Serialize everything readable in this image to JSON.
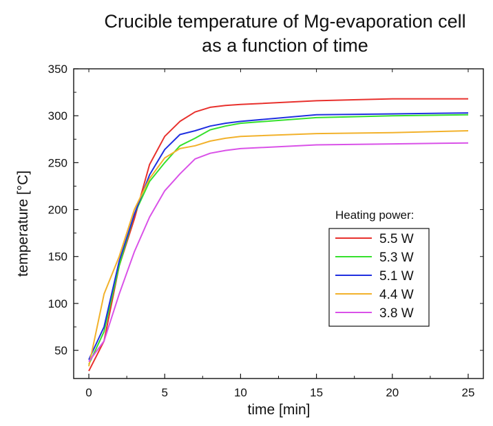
{
  "chart_data": {
    "type": "line",
    "title_lines": [
      "Crucible temperature of Mg-evaporation cell",
      "as a function of time"
    ],
    "xlabel": "time [min]",
    "ylabel": "temperature [°C]",
    "xlim": [
      -1,
      26
    ],
    "ylim": [
      20,
      350
    ],
    "xticks": [
      0,
      5,
      10,
      15,
      20,
      25
    ],
    "yticks": [
      50,
      100,
      150,
      200,
      250,
      300,
      350
    ],
    "grid": false,
    "legend": {
      "title": "Heating power:",
      "placement": "center-right"
    },
    "series": [
      {
        "name": "5.5 W",
        "color": "#e8302c",
        "x": [
          0,
          1,
          2,
          3,
          4,
          5,
          6,
          7,
          8,
          9,
          10,
          15,
          20,
          25
        ],
        "y": [
          28,
          60,
          140,
          190,
          248,
          278,
          294,
          304,
          309,
          311,
          312,
          316,
          318,
          318
        ]
      },
      {
        "name": "5.3 W",
        "color": "#35e02c",
        "x": [
          0,
          1,
          2,
          3,
          4,
          5,
          6,
          7,
          8,
          9,
          10,
          15,
          20,
          25
        ],
        "y": [
          35,
          70,
          140,
          195,
          230,
          250,
          268,
          276,
          285,
          289,
          292,
          298,
          300,
          301
        ]
      },
      {
        "name": "5.1 W",
        "color": "#1f2fe0",
        "x": [
          0,
          1,
          2,
          3,
          4,
          5,
          6,
          7,
          8,
          9,
          10,
          15,
          20,
          25
        ],
        "y": [
          40,
          75,
          145,
          195,
          237,
          264,
          280,
          284,
          289,
          292,
          294,
          301,
          302,
          303
        ]
      },
      {
        "name": "4.4 W",
        "color": "#f2b12a",
        "x": [
          0,
          1,
          2,
          3,
          4,
          5,
          6,
          7,
          8,
          9,
          10,
          15,
          20,
          25
        ],
        "y": [
          33,
          110,
          150,
          200,
          233,
          255,
          265,
          268,
          273,
          276,
          278,
          281,
          282,
          284
        ]
      },
      {
        "name": "3.8 W",
        "color": "#d951e8",
        "x": [
          0,
          1,
          2,
          3,
          4,
          5,
          6,
          7,
          8,
          9,
          10,
          15,
          20,
          25
        ],
        "y": [
          38,
          60,
          110,
          155,
          192,
          220,
          238,
          254,
          260,
          263,
          265,
          269,
          270,
          271
        ]
      }
    ]
  }
}
